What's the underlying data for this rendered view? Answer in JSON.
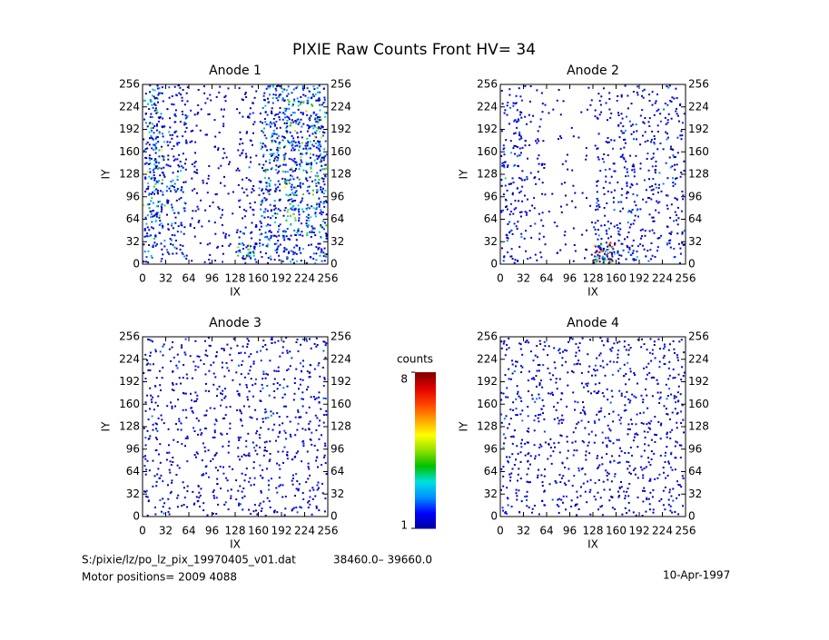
{
  "title": "PIXIE Raw Counts Front HV= 34",
  "chart_data": [
    {
      "type": "heatmap",
      "title": "Anode 1",
      "x_label": "IX",
      "y_label": "IY",
      "xlim": [
        0,
        256
      ],
      "ylim": [
        0,
        256
      ],
      "xticks": [
        0,
        32,
        64,
        96,
        128,
        160,
        192,
        224,
        256
      ],
      "yticks": [
        0,
        32,
        64,
        96,
        128,
        160,
        192,
        224,
        256
      ],
      "values": [
        [
          2.2,
          1.4,
          0.6,
          0.5,
          0.8,
          2.2,
          2.6,
          2.8
        ],
        [
          2.4,
          1.5,
          0.6,
          0.5,
          0.8,
          2.4,
          2.8,
          3.0
        ],
        [
          2.6,
          1.6,
          0.6,
          0.5,
          0.9,
          2.6,
          3.0,
          3.0
        ],
        [
          2.8,
          1.6,
          0.7,
          0.5,
          0.9,
          2.6,
          2.8,
          3.0
        ],
        [
          2.8,
          1.6,
          0.7,
          0.5,
          0.9,
          2.5,
          2.8,
          2.8
        ],
        [
          2.5,
          1.5,
          0.6,
          0.5,
          0.9,
          2.4,
          2.6,
          2.6
        ],
        [
          2.2,
          1.4,
          0.6,
          0.6,
          1.0,
          2.2,
          2.4,
          2.4
        ],
        [
          1.6,
          1.2,
          0.6,
          0.6,
          3.5,
          1.8,
          2.0,
          2.0
        ]
      ]
    },
    {
      "type": "heatmap",
      "title": "Anode 2",
      "x_label": "IX",
      "y_label": "IY",
      "xlim": [
        0,
        256
      ],
      "ylim": [
        0,
        256
      ],
      "xticks": [
        0,
        32,
        64,
        96,
        128,
        160,
        192,
        224,
        256
      ],
      "yticks": [
        0,
        32,
        64,
        96,
        128,
        160,
        192,
        224,
        256
      ],
      "values": [
        [
          1.0,
          0.5,
          0.2,
          0.2,
          0.6,
          0.8,
          0.8,
          0.9
        ],
        [
          1.2,
          0.6,
          0.2,
          0.2,
          0.7,
          1.0,
          1.0,
          1.0
        ],
        [
          1.4,
          0.7,
          0.2,
          0.2,
          0.8,
          1.1,
          1.1,
          1.0
        ],
        [
          1.6,
          0.8,
          0.3,
          0.2,
          0.9,
          1.2,
          1.1,
          1.0
        ],
        [
          1.5,
          0.8,
          0.3,
          0.2,
          0.9,
          1.3,
          1.1,
          1.0
        ],
        [
          1.4,
          0.7,
          0.3,
          0.3,
          1.0,
          1.2,
          1.0,
          1.0
        ],
        [
          1.2,
          0.7,
          0.3,
          0.3,
          1.4,
          1.2,
          1.0,
          1.0
        ],
        [
          1.0,
          0.6,
          0.3,
          0.5,
          6.0,
          2.0,
          1.0,
          1.0
        ]
      ]
    },
    {
      "type": "heatmap",
      "title": "Anode 3",
      "x_label": "IX",
      "y_label": "IY",
      "xlim": [
        0,
        256
      ],
      "ylim": [
        0,
        256
      ],
      "xticks": [
        0,
        32,
        64,
        96,
        128,
        160,
        192,
        224,
        256
      ],
      "yticks": [
        0,
        32,
        64,
        96,
        128,
        160,
        192,
        224,
        256
      ],
      "values": [
        [
          0.9,
          0.8,
          0.8,
          0.8,
          0.9,
          0.9,
          0.9,
          1.0
        ],
        [
          0.9,
          0.8,
          0.7,
          0.8,
          0.9,
          0.9,
          0.9,
          1.0
        ],
        [
          0.9,
          0.8,
          0.7,
          0.8,
          0.9,
          0.9,
          0.9,
          0.9
        ],
        [
          0.9,
          0.8,
          0.7,
          0.8,
          0.9,
          1.0,
          0.9,
          0.9
        ],
        [
          0.9,
          0.8,
          0.7,
          0.8,
          0.9,
          1.0,
          0.9,
          0.9
        ],
        [
          0.9,
          0.8,
          0.7,
          0.8,
          0.9,
          1.0,
          0.9,
          0.9
        ],
        [
          0.9,
          0.8,
          0.8,
          0.8,
          0.9,
          1.0,
          0.9,
          0.9
        ],
        [
          0.9,
          0.8,
          0.8,
          0.8,
          0.9,
          0.9,
          0.9,
          0.9
        ]
      ]
    },
    {
      "type": "heatmap",
      "title": "Anode 4",
      "x_label": "IX",
      "y_label": "IY",
      "xlim": [
        0,
        256
      ],
      "ylim": [
        0,
        256
      ],
      "xticks": [
        0,
        32,
        64,
        96,
        128,
        160,
        192,
        224,
        256
      ],
      "yticks": [
        0,
        32,
        64,
        96,
        128,
        160,
        192,
        224,
        256
      ],
      "values": [
        [
          1.0,
          0.9,
          0.8,
          0.8,
          0.9,
          0.9,
          0.9,
          1.1
        ],
        [
          1.0,
          0.9,
          0.8,
          0.8,
          0.9,
          0.9,
          0.9,
          1.1
        ],
        [
          1.0,
          0.9,
          0.8,
          0.8,
          0.9,
          0.9,
          0.9,
          1.0
        ],
        [
          1.0,
          0.9,
          0.8,
          0.8,
          0.9,
          0.9,
          0.9,
          1.0
        ],
        [
          1.0,
          0.9,
          0.8,
          0.8,
          0.9,
          0.9,
          0.9,
          1.0
        ],
        [
          1.0,
          0.9,
          0.8,
          0.8,
          0.9,
          0.9,
          0.9,
          1.0
        ],
        [
          1.0,
          0.9,
          0.8,
          0.8,
          0.9,
          0.9,
          0.9,
          1.0
        ],
        [
          1.0,
          0.9,
          0.8,
          0.8,
          0.9,
          0.9,
          0.9,
          1.0
        ]
      ]
    }
  ],
  "colorbar": {
    "label": "counts",
    "zlim": [
      1,
      8
    ],
    "ticks": [
      1,
      8
    ],
    "colormap": [
      "#0000a0",
      "#0000ff",
      "#0090ff",
      "#00e0e0",
      "#00c000",
      "#90e000",
      "#ffff00",
      "#ffa000",
      "#ff4000",
      "#e00000",
      "#800000"
    ]
  },
  "footer": {
    "file": "S:/pixie/lz/po_lz_pix_19970405_v01.dat",
    "range": "38460.0– 39660.0",
    "motor": "Motor positions= 2009 4088",
    "date": "10-Apr-1997"
  }
}
